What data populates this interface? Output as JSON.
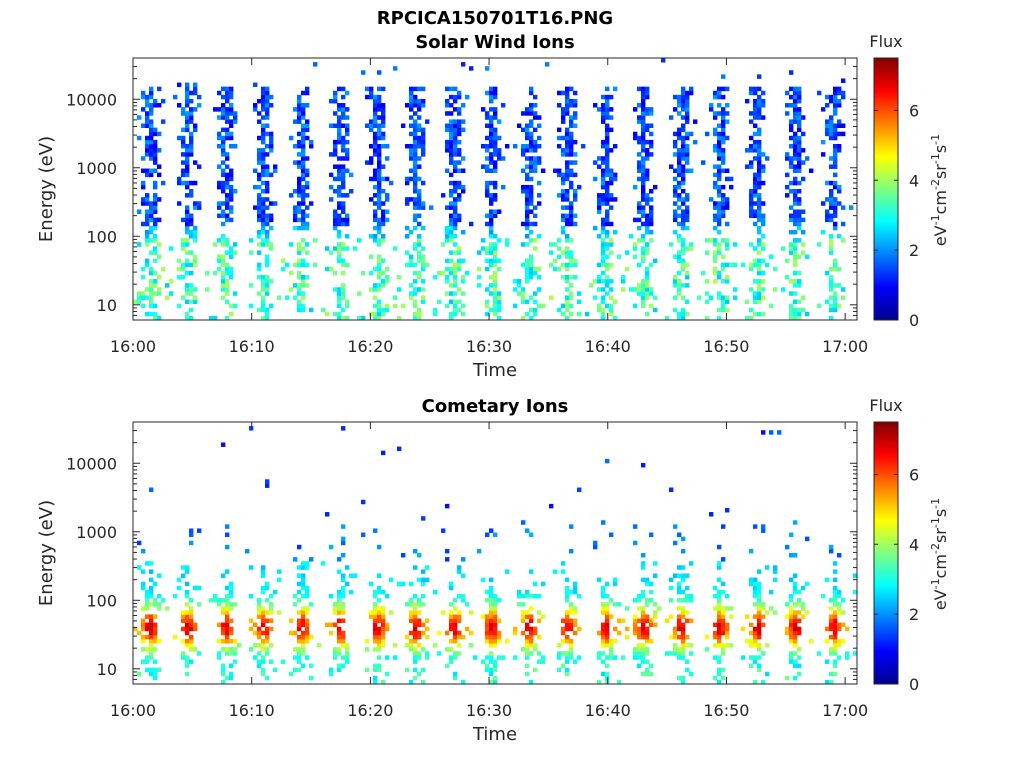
{
  "figure_title": "RPCICA150701T16.PNG",
  "chart_data": [
    {
      "type": "heatmap",
      "title": "Solar Wind Ions",
      "xlabel": "Time",
      "ylabel": "Energy (eV)",
      "x_ticks": [
        "16:00",
        "16:10",
        "16:20",
        "16:30",
        "16:40",
        "16:50",
        "17:00"
      ],
      "x_range": [
        "16:00",
        "17:01"
      ],
      "y_scale": "log",
      "y_ticks": [
        10,
        100,
        1000,
        10000
      ],
      "y_tick_labels": [
        "10",
        "100",
        "1000",
        "10000"
      ],
      "ylim": [
        6,
        40000
      ],
      "colorbar": {
        "label": "Flux",
        "units": "eV-1cm-2sr-1s-1",
        "range": [
          0,
          7.5
        ],
        "ticks": [
          "0",
          "2",
          "4",
          "6"
        ],
        "colormap": "jet"
      },
      "description_of_structure": "Periodic vertical bursts roughly every 3.2 minutes (about 19 bursts); high energy 200-15000 eV in blue (flux ~1-2), low energy 10-100 eV in cyan/green (flux ~2.5-4)",
      "burst_period_min": 3.2,
      "burst_count": 19,
      "high_band_eV": [
        200,
        15000
      ],
      "high_band_flux": [
        0.8,
        2.2
      ],
      "low_band_eV": [
        6,
        100
      ],
      "low_band_flux": [
        2.4,
        4.0
      ]
    },
    {
      "type": "heatmap",
      "title": "Cometary Ions",
      "xlabel": "Time",
      "ylabel": "Energy (eV)",
      "x_ticks": [
        "16:00",
        "16:10",
        "16:20",
        "16:30",
        "16:40",
        "16:50",
        "17:00"
      ],
      "x_range": [
        "16:00",
        "17:01"
      ],
      "y_scale": "log",
      "y_ticks": [
        10,
        100,
        1000,
        10000
      ],
      "y_tick_labels": [
        "10",
        "100",
        "1000",
        "10000"
      ],
      "ylim": [
        6,
        40000
      ],
      "colorbar": {
        "label": "Flux",
        "units": "eV-1cm-2sr-1s-1",
        "range": [
          0,
          7.5
        ],
        "ticks": [
          "0",
          "2",
          "4",
          "6"
        ],
        "colormap": "jet"
      },
      "description_of_structure": "Periodic bursts every ~3.2 minutes concentrated at 15-300 eV; peak flux ~6-7 (orange/red) near 40 eV, sparse blue points up to ~10000 eV",
      "burst_period_min": 3.2,
      "burst_count": 19,
      "core_band_eV": [
        15,
        300
      ],
      "peak_energy_eV": 40,
      "peak_flux": [
        5.5,
        7.0
      ],
      "sparse_high_eV": [
        400,
        15000
      ]
    }
  ]
}
